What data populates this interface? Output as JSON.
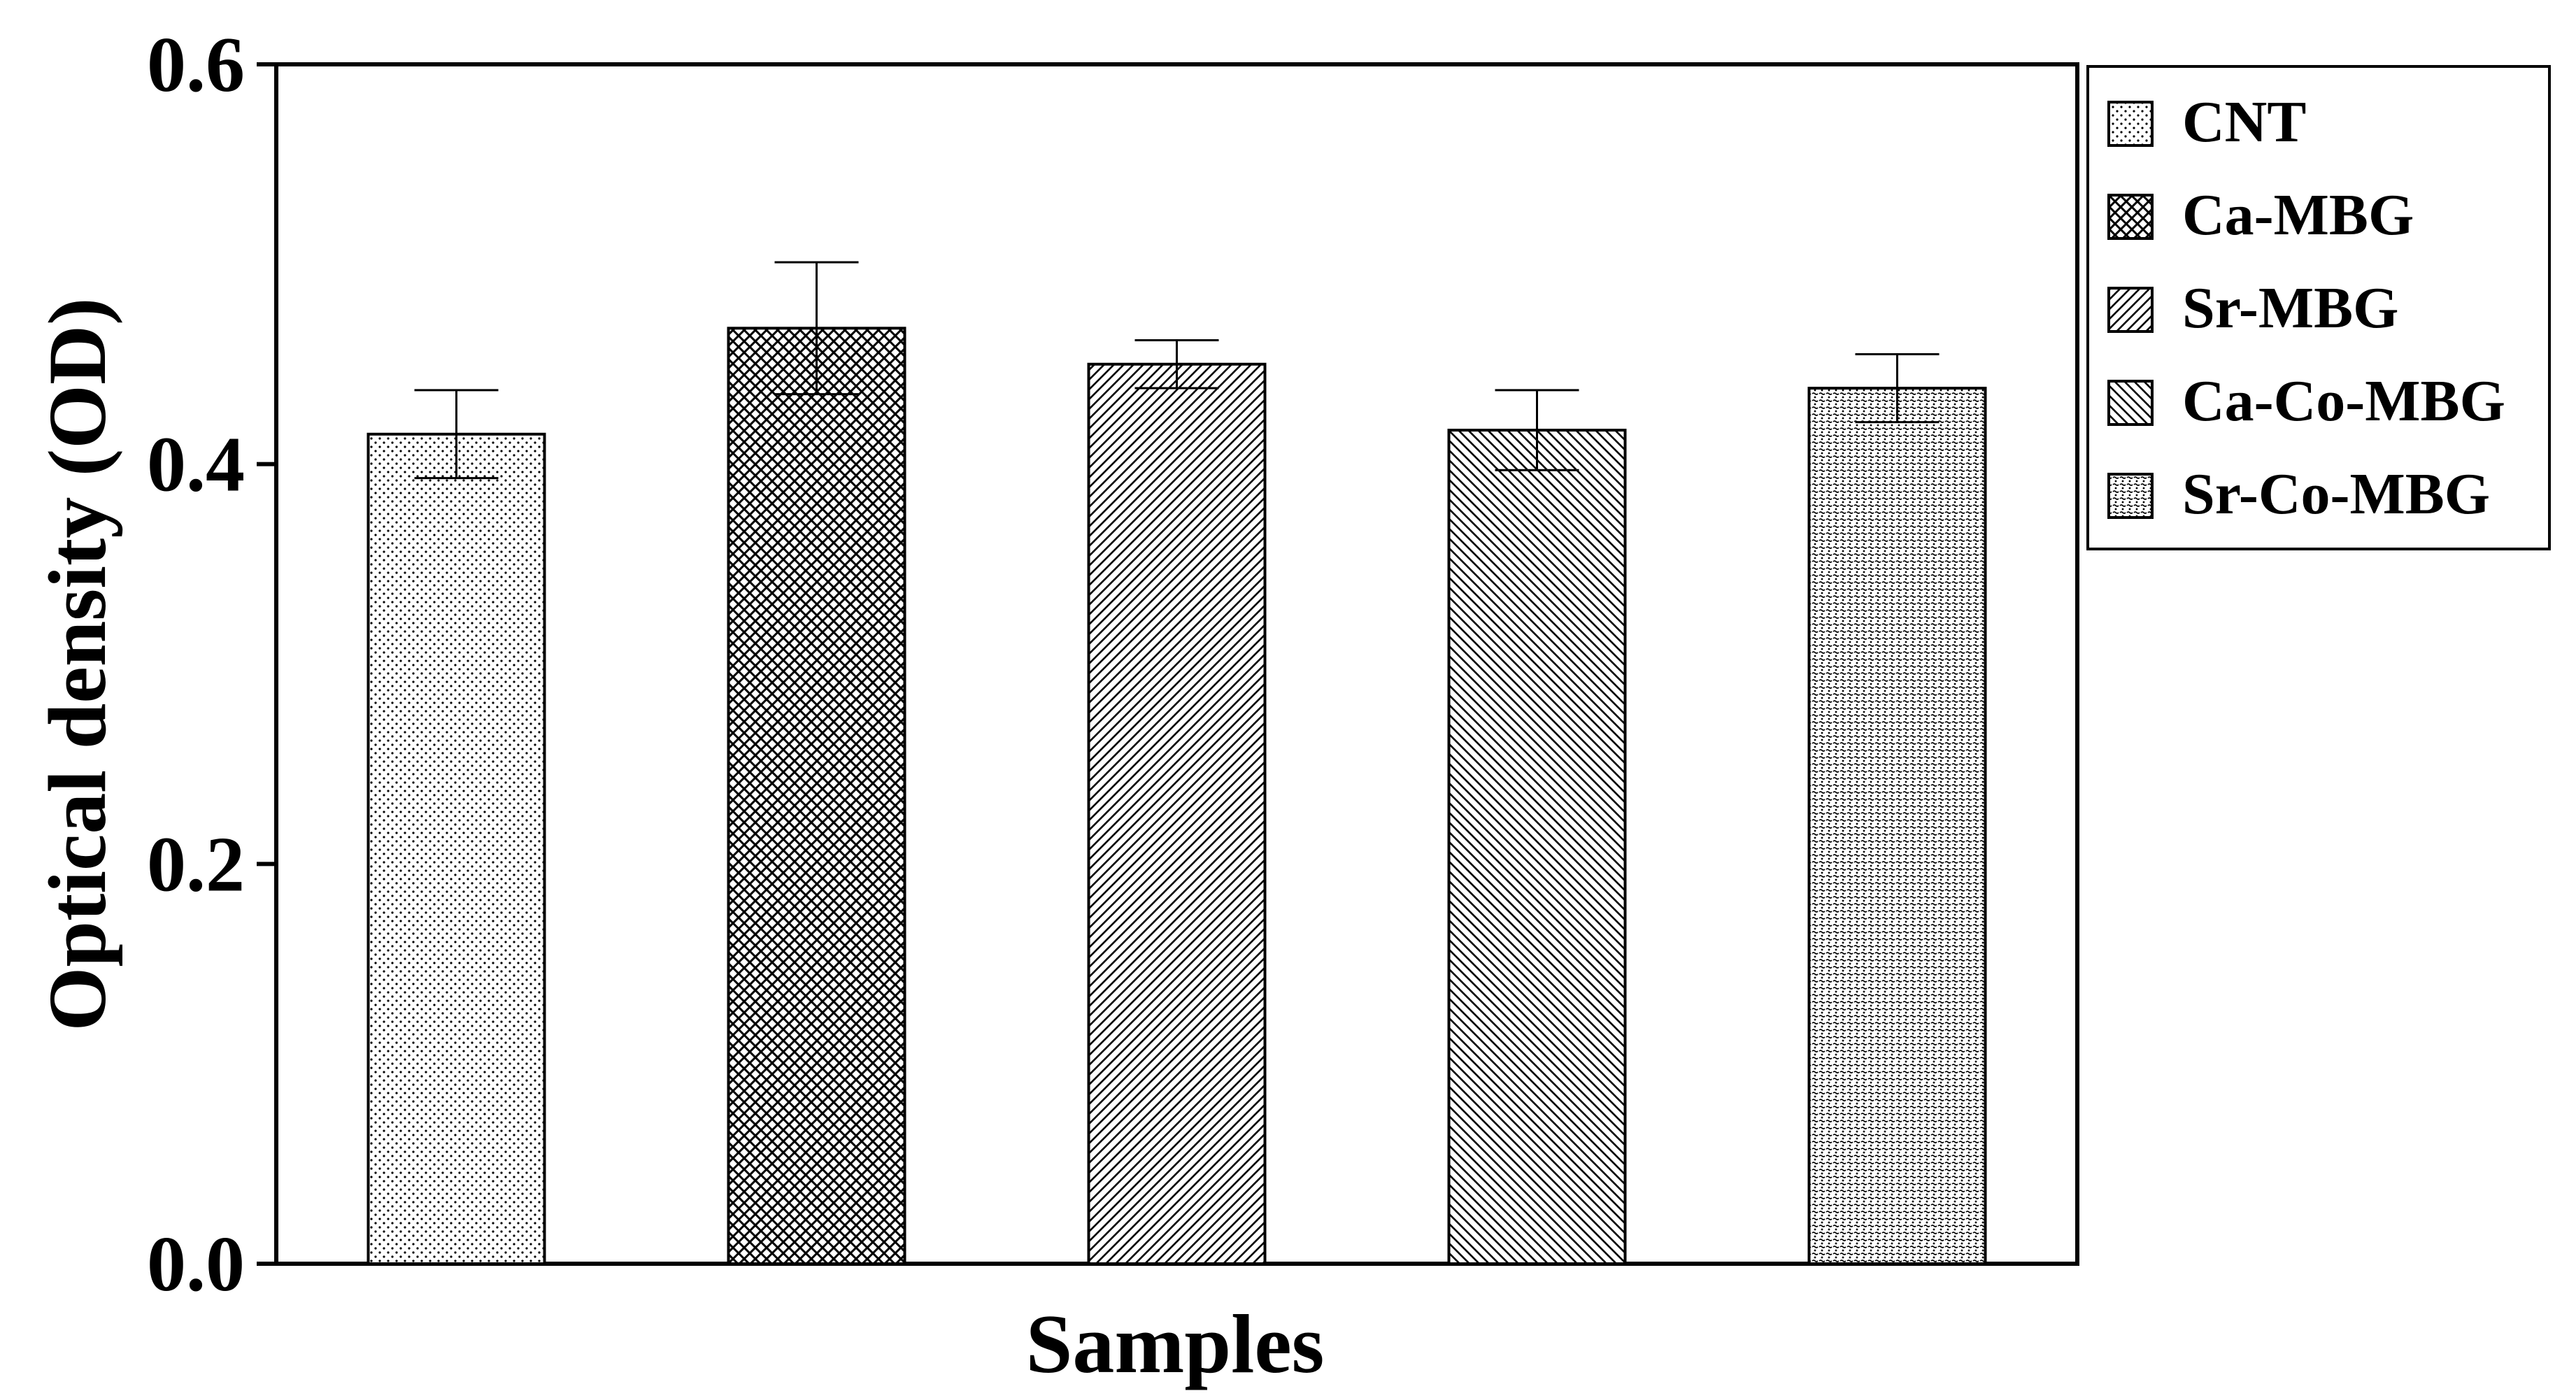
{
  "chart_data": {
    "type": "bar",
    "title": "",
    "xlabel": "Samples",
    "ylabel": "Optical density (OD)",
    "ylim": [
      0,
      0.6
    ],
    "yticks": [
      "0.0",
      "0.2",
      "0.4",
      "0.6"
    ],
    "yticks_values": [
      0,
      0.2,
      0.4,
      0.6
    ],
    "grid": false,
    "legend_position": "outside-top-right",
    "series": [
      {
        "name": "CNT",
        "value": 0.415,
        "error": 0.022,
        "pattern": "dots"
      },
      {
        "name": "Ca-MBG",
        "value": 0.468,
        "error": 0.033,
        "pattern": "crosshatch"
      },
      {
        "name": "Sr-MBG",
        "value": 0.45,
        "error": 0.012,
        "pattern": "diag-right"
      },
      {
        "name": "Ca-Co-MBG",
        "value": 0.417,
        "error": 0.02,
        "pattern": "diag-left"
      },
      {
        "name": "Sr-Co-MBG",
        "value": 0.438,
        "error": 0.017,
        "pattern": "dense-dots"
      }
    ],
    "colors": {
      "bar_stroke": "#000000",
      "pattern_ink": "#000000",
      "background": "#ffffff"
    }
  }
}
